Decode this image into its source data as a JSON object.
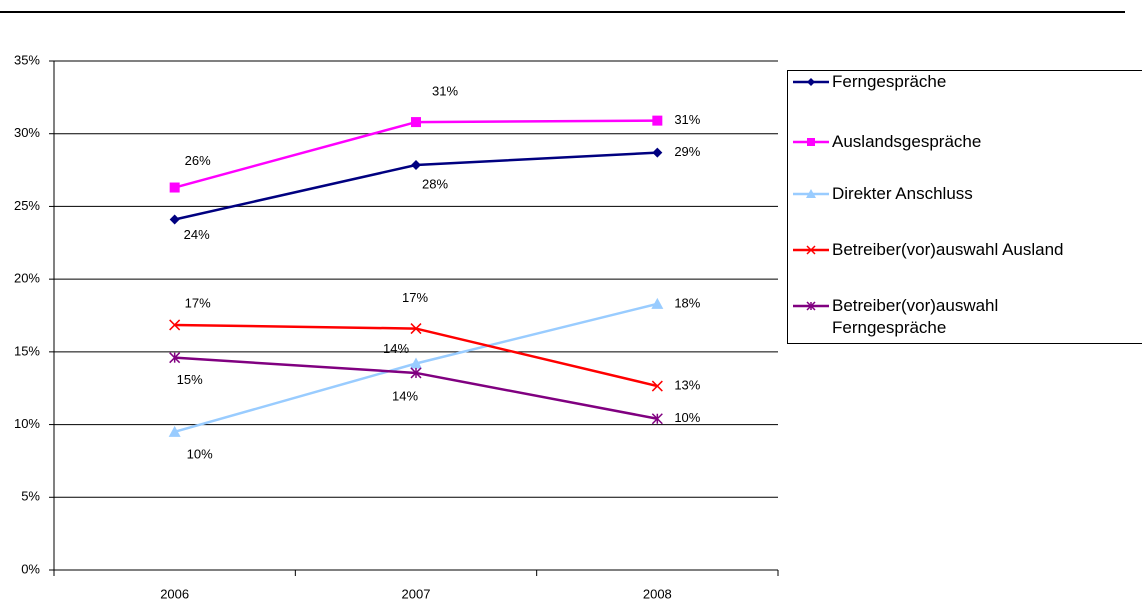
{
  "chart_data": {
    "type": "line",
    "categories": [
      "2006",
      "2007",
      "2008"
    ],
    "ylim": [
      0,
      35
    ],
    "yticks": [
      {
        "value": 0,
        "label": "0%"
      },
      {
        "value": 5,
        "label": "5%"
      },
      {
        "value": 10,
        "label": "10%"
      },
      {
        "value": 15,
        "label": "15%"
      },
      {
        "value": 20,
        "label": "20%"
      },
      {
        "value": 25,
        "label": "25%"
      },
      {
        "value": 30,
        "label": "30%"
      },
      {
        "value": 35,
        "label": "35%"
      }
    ],
    "grid": true,
    "legend": "right",
    "series": [
      {
        "name": "Ferngespräche",
        "color": "#000080",
        "marker": "diamond",
        "values": [
          24.1,
          27.85,
          28.7
        ],
        "value_labels": [
          "24%",
          "28%",
          "29%"
        ]
      },
      {
        "name": "Auslandsgespräche",
        "color": "#FF00FF",
        "marker": "square",
        "values": [
          26.3,
          30.8,
          30.9
        ],
        "value_labels": [
          "26%",
          "31%",
          "31%"
        ]
      },
      {
        "name": "Direkter Anschluss",
        "color": "#99CCFF",
        "marker": "triangle",
        "values": [
          9.5,
          14.2,
          18.3
        ],
        "value_labels": [
          "10%",
          "14%",
          "18%"
        ]
      },
      {
        "name": "Betreiber(vor)auswahl Ausland",
        "color": "#FF0000",
        "marker": "x",
        "values": [
          16.85,
          16.6,
          12.65
        ],
        "value_labels": [
          "17%",
          "17%",
          "13%"
        ]
      },
      {
        "name": "Betreiber(vor)auswahl Ferngespräche",
        "color": "#800080",
        "marker": "star",
        "values": [
          14.6,
          13.55,
          10.4
        ],
        "value_labels": [
          "15%",
          "14%",
          "10%"
        ]
      }
    ]
  }
}
